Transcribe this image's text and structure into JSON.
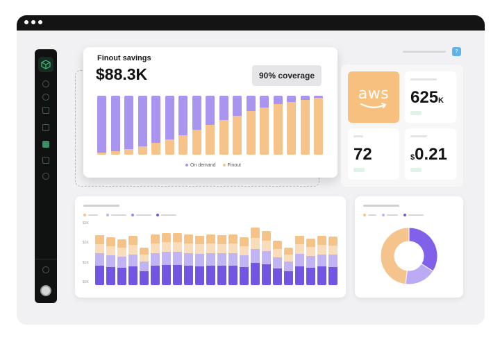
{
  "savings": {
    "title": "Finout savings",
    "value": "$88.3K",
    "coverage": "90% coverage",
    "legend": [
      "On demand",
      "Finout"
    ],
    "colors": {
      "on_demand": "#a994ef",
      "finout": "#f6c38b"
    },
    "finout_fraction": [
      0.03,
      0.06,
      0.09,
      0.14,
      0.2,
      0.26,
      0.33,
      0.42,
      0.51,
      0.59,
      0.66,
      0.74,
      0.8,
      0.86,
      0.9,
      0.93,
      0.96
    ]
  },
  "stats": {
    "aws_label": "aws",
    "savings_value": "625",
    "savings_unit": "K",
    "count_value": "72",
    "price_currency": "$",
    "price_value": "0.21"
  },
  "stacked_chart": {
    "y_labels": [
      "$3K",
      "$2K",
      "$1K",
      "$0K"
    ],
    "colors": [
      "#7355e4",
      "#c2b3f4",
      "#f9dcb9",
      "#f5c387"
    ],
    "totals": [
      0.74,
      0.7,
      0.67,
      0.72,
      0.55,
      0.75,
      0.77,
      0.77,
      0.75,
      0.73,
      0.75,
      0.74,
      0.75,
      0.7,
      0.85,
      0.8,
      0.65,
      0.55,
      0.73,
      0.68,
      0.72,
      0.71
    ]
  },
  "donut": {
    "colors": [
      "#8160ea",
      "#bcaaf2",
      "#f4c48c"
    ],
    "values": [
      0.34,
      0.18,
      0.48
    ]
  }
}
